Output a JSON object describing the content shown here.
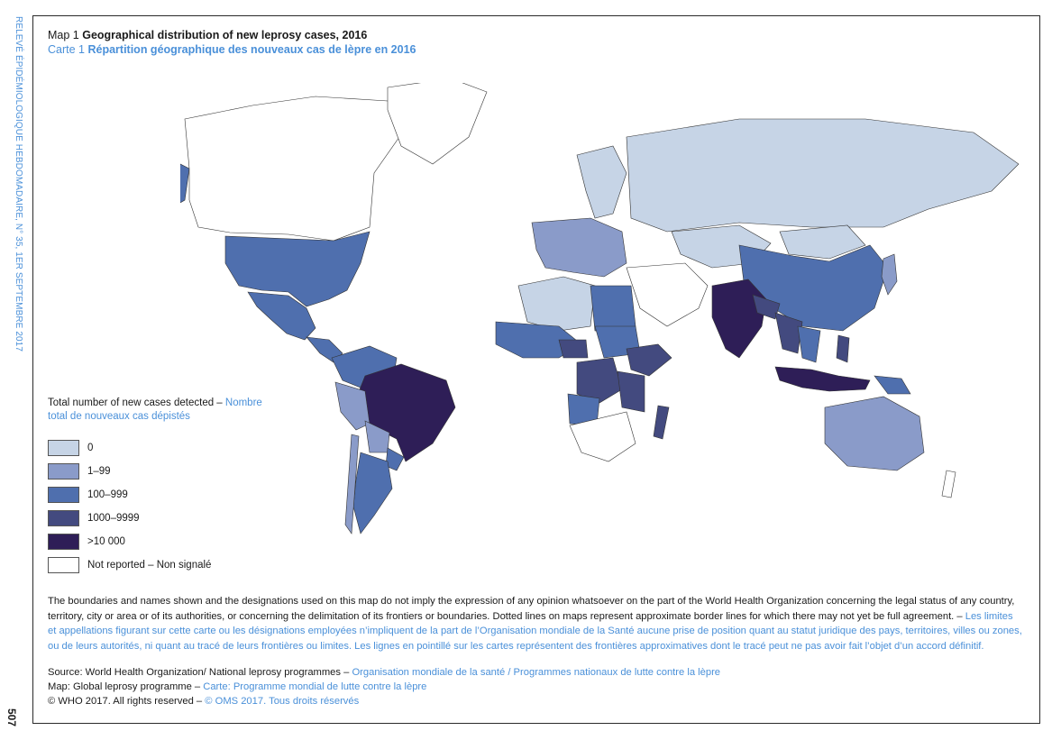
{
  "running_head": "RELEVÉ ÉPIDÉMIOLOGIQUE HEBDOMADAIRE, N° 35, 1ER SEPTEMBRE 2017",
  "page_number": "507",
  "title": {
    "en_label": "Map 1",
    "en_text": "Geographical distribution of new leprosy cases, 2016",
    "fr_label": "Carte 1",
    "fr_text": "Répartition géographique des nouveaux cas de lèpre en 2016"
  },
  "legend": {
    "title_en": "Total number of new cases detected – ",
    "title_fr": "Nombre total de nouveaux cas dépistés",
    "items": [
      {
        "label": "0",
        "color": "#c6d4e6"
      },
      {
        "label": "1–99",
        "color": "#8a9bc9"
      },
      {
        "label": "100–999",
        "color": "#4f6fae"
      },
      {
        "label": "1000–9999",
        "color": "#434a7f"
      },
      {
        "label": ">10 000",
        "color": "#2e1e57"
      },
      {
        "label": "Not reported – Non signalé",
        "color": "#ffffff"
      }
    ]
  },
  "map_regions": [
    {
      "name": "United States",
      "category": "100–999"
    },
    {
      "name": "Alaska",
      "category": "100–999"
    },
    {
      "name": "Canada",
      "category": "Not reported – Non signalé"
    },
    {
      "name": "Greenland",
      "category": "Not reported – Non signalé"
    },
    {
      "name": "Mexico",
      "category": "100–999"
    },
    {
      "name": "Brazil",
      "category": ">10 000"
    },
    {
      "name": "Argentina",
      "category": "100–999"
    },
    {
      "name": "Colombia",
      "category": "100–999"
    },
    {
      "name": "Venezuela",
      "category": "100–999"
    },
    {
      "name": "Peru",
      "category": "1–99"
    },
    {
      "name": "Bolivia",
      "category": "1–99"
    },
    {
      "name": "Paraguay",
      "category": "100–999"
    },
    {
      "name": "Chile",
      "category": "1–99"
    },
    {
      "name": "Russia",
      "category": "0"
    },
    {
      "name": "Kazakhstan",
      "category": "0"
    },
    {
      "name": "China",
      "category": "100–999"
    },
    {
      "name": "Mongolia",
      "category": "0"
    },
    {
      "name": "India",
      "category": ">10 000"
    },
    {
      "name": "Bangladesh",
      "category": "1000–9999"
    },
    {
      "name": "Myanmar",
      "category": "1000–9999"
    },
    {
      "name": "Nepal",
      "category": "1000–9999"
    },
    {
      "name": "Indonesia",
      "category": ">10 000"
    },
    {
      "name": "Philippines",
      "category": "1000–9999"
    },
    {
      "name": "Papua New Guinea",
      "category": "100–999"
    },
    {
      "name": "Australia",
      "category": "1–99"
    },
    {
      "name": "Algeria",
      "category": "0"
    },
    {
      "name": "Libya",
      "category": "1–99"
    },
    {
      "name": "Egypt",
      "category": "100–999"
    },
    {
      "name": "Nigeria",
      "category": "1000–9999"
    },
    {
      "name": "Ethiopia",
      "category": "1000–9999"
    },
    {
      "name": "DR Congo",
      "category": "1000–9999"
    },
    {
      "name": "Tanzania",
      "category": "1000–9999"
    },
    {
      "name": "Mozambique",
      "category": "1000–9999"
    },
    {
      "name": "Madagascar",
      "category": "1000–9999"
    },
    {
      "name": "Angola",
      "category": "100–999"
    },
    {
      "name": "Sudan",
      "category": "100–999"
    },
    {
      "name": "Western Europe",
      "category": "1–99"
    },
    {
      "name": "Scandinavia",
      "category": "0"
    }
  ],
  "disclaimer": {
    "en": "The boundaries and names shown and the designations used on this map do not imply the expression of any opinion whatsoever on the part of the World Health Organization concerning the legal status of any country, territory, city or area or of its authorities, or concerning the delimitation of its frontiers or boundaries. Dotted lines on maps represent approximate border lines for which there may not yet be full agreement. – ",
    "fr": "Les limites et appellations figurant sur cette carte ou les désignations employées n’impliquent de la part de l’Organisation mondiale de la Santé aucune prise de position quant au statut juridique des pays, territoires, villes ou zones, ou de leurs autorités, ni quant au tracé de leurs frontières ou limites. Les lignes en pointillé sur les cartes représentent des frontières approximatives dont le tracé peut ne pas avoir fait l’objet d’un accord définitif."
  },
  "credits": {
    "source_en": "Source: World Health Organization/ National leprosy programmes – ",
    "source_fr": "Organisation mondiale de la santé / Programmes nationaux de lutte contre la lèpre",
    "map_en": "Map: Global leprosy programme – ",
    "map_fr": "Carte: Programme mondial de lutte contre la lèpre",
    "copyright_en": "© WHO 2017. All rights reserved – ",
    "copyright_fr": "© OMS 2017. Tous droits réservés"
  }
}
